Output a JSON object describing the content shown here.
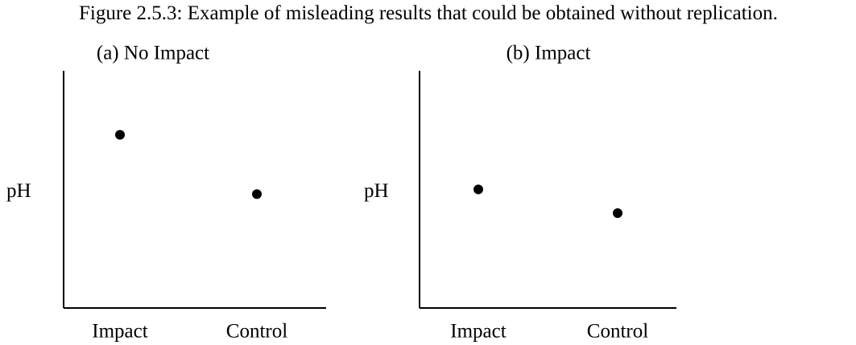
{
  "title": "Figure 2.5.3: Example of misleading results that could be obtained without replication.",
  "chart_data": [
    {
      "type": "scatter",
      "title": "(a) No Impact",
      "ylabel": "pH",
      "categories": [
        "Impact",
        "Control"
      ],
      "values": [
        73,
        48
      ],
      "color": "#000000",
      "ylim": [
        0,
        100
      ]
    },
    {
      "type": "scatter",
      "title": "(b) Impact",
      "ylabel": "pH",
      "categories": [
        "Impact",
        "Control"
      ],
      "values": [
        50,
        40
      ],
      "color": "#000000",
      "ylim": [
        0,
        100
      ]
    }
  ]
}
